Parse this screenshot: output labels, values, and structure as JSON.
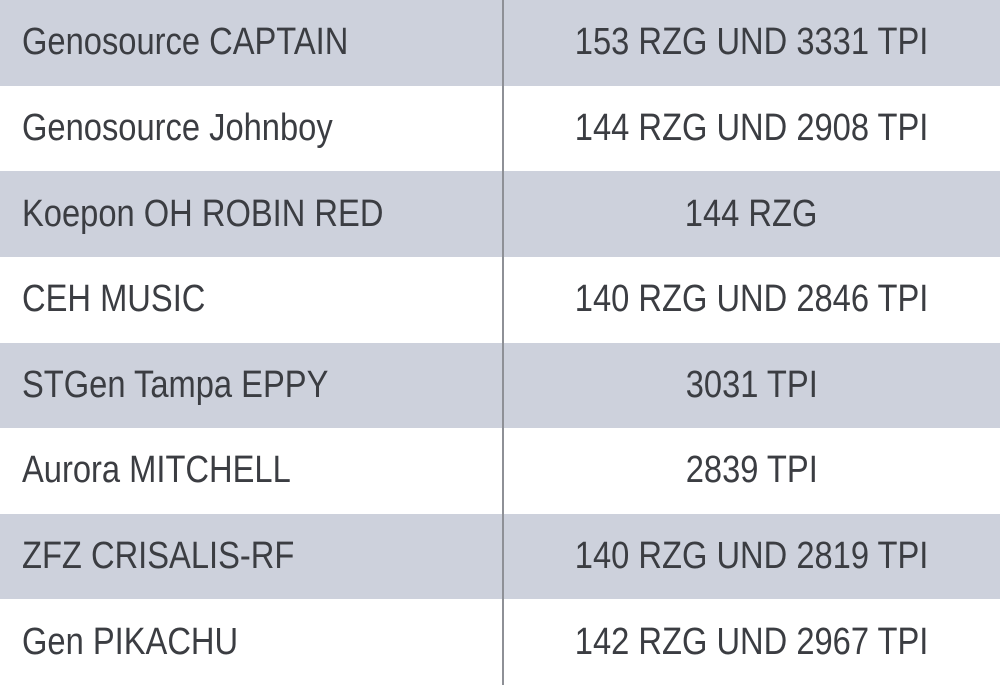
{
  "table": {
    "rows": [
      [
        "Genosource CAPTAIN",
        "153 RZG UND 3331 TPI"
      ],
      [
        "Genosource Johnboy",
        "144 RZG UND 2908 TPI"
      ],
      [
        "Koepon OH ROBIN RED",
        "144 RZG"
      ],
      [
        "CEH MUSIC",
        "140 RZG UND 2846 TPI"
      ],
      [
        "STGen Tampa EPPY",
        "3031 TPI"
      ],
      [
        "Aurora MITCHELL",
        "2839 TPI"
      ],
      [
        "ZFZ CRISALIS-RF",
        "140 RZG UND 2819 TPI"
      ],
      [
        "Gen PIKACHU",
        "142 RZG UND 2967 TPI"
      ]
    ]
  }
}
